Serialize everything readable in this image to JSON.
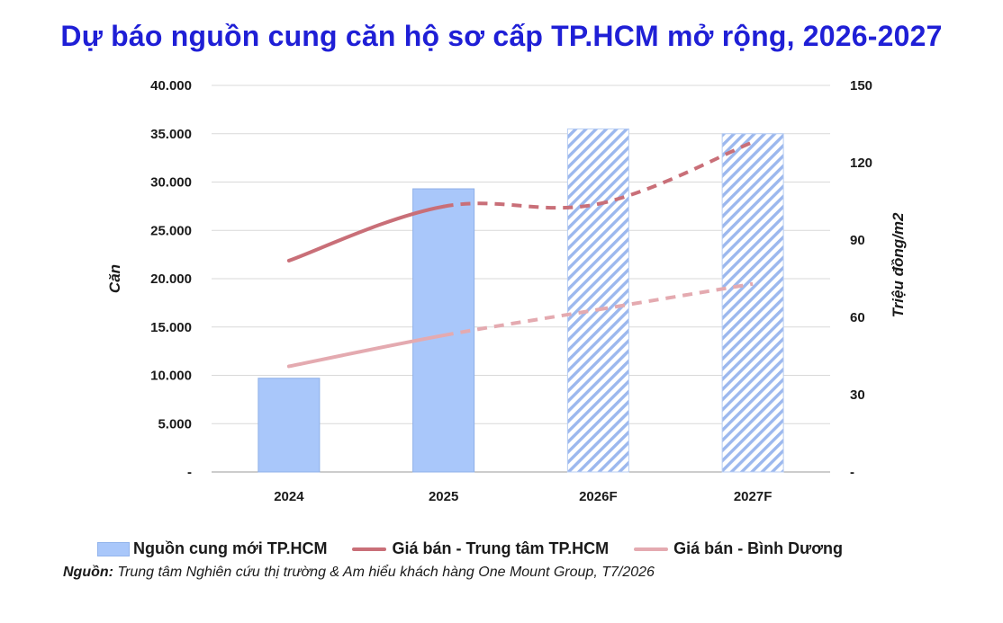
{
  "title": "Dự báo nguồn cung căn hộ sơ cấp TP.HCM mở rộng, 2026-2027",
  "chart_data": {
    "type": "bar",
    "categories": [
      "2024",
      "2025",
      "2026F",
      "2027F"
    ],
    "y_left": {
      "label": "Căn",
      "min": 0,
      "max": 40000,
      "step": 5000,
      "tick_labels": [
        "-",
        "5.000",
        "10.000",
        "15.000",
        "20.000",
        "25.000",
        "30.000",
        "35.000",
        "40.000"
      ]
    },
    "y_right": {
      "label": "Triệu đồng/m2",
      "min": 0,
      "max": 150,
      "step": 30,
      "tick_labels": [
        "-",
        "30",
        "60",
        "90",
        "120",
        "150"
      ]
    },
    "grid": true,
    "legend_position": "bottom",
    "series": [
      {
        "name": "Nguồn cung mới TP.HCM",
        "type": "bar",
        "axis": "left",
        "values": [
          9700,
          29300,
          35500,
          35000
        ],
        "forecast_from_index": 2,
        "color": "#a9c7fa",
        "forecast_hatch_color": "#9cb8ee"
      },
      {
        "name": "Giá bán - Trung tâm TP.HCM",
        "type": "line",
        "axis": "right",
        "values": [
          82,
          103,
          104,
          128
        ],
        "forecast_from_index": 1,
        "color": "#c96f78"
      },
      {
        "name": "Giá bán - Bình Dương",
        "type": "line",
        "axis": "right",
        "values": [
          41,
          53,
          63,
          73
        ],
        "forecast_from_index": 1,
        "color": "#e4aab0"
      }
    ]
  },
  "source": {
    "label": "Nguồn:",
    "text": " Trung tâm Nghiên cứu thị trường & Am hiểu khách hàng One Mount Group, T7/2026"
  }
}
